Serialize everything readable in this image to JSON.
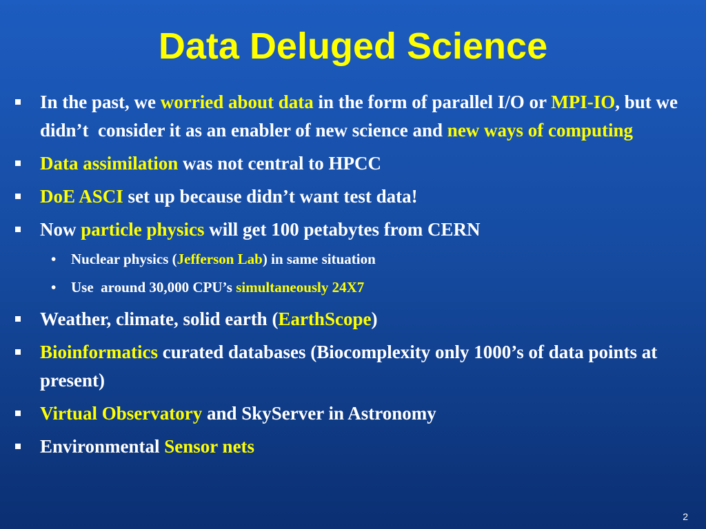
{
  "title": "Data Deluged Science",
  "bullets": [
    {
      "runs": [
        {
          "text": "In the past, we ",
          "highlight": false
        },
        {
          "text": "worried about data",
          "highlight": true
        },
        {
          "text": " in the form of parallel I/O or ",
          "highlight": false
        },
        {
          "text": "MPI-IO",
          "highlight": true
        },
        {
          "text": ", but we didn’t  consider it as an enabler of new science and ",
          "highlight": false
        },
        {
          "text": "new ways of computing",
          "highlight": true
        }
      ]
    },
    {
      "runs": [
        {
          "text": "Data assimilation",
          "highlight": true
        },
        {
          "text": " was not central to HPCC",
          "highlight": false
        }
      ]
    },
    {
      "runs": [
        {
          "text": "DoE ASCI",
          "highlight": true
        },
        {
          "text": " set up because didn’t want test data!",
          "highlight": false
        }
      ]
    },
    {
      "runs": [
        {
          "text": "Now ",
          "highlight": false
        },
        {
          "text": "particle physics",
          "highlight": true
        },
        {
          "text": " will get 100 petabytes from CERN",
          "highlight": false
        }
      ],
      "sub_bullets": [
        {
          "runs": [
            {
              "text": "Nuclear physics (",
              "highlight": false
            },
            {
              "text": "Jefferson Lab",
              "highlight": true
            },
            {
              "text": ") in same situation",
              "highlight": false
            }
          ]
        },
        {
          "runs": [
            {
              "text": "Use  around 30,000 CPU’s ",
              "highlight": false
            },
            {
              "text": "simultaneously 24X7",
              "highlight": true
            }
          ]
        }
      ]
    },
    {
      "runs": [
        {
          "text": "Weather, climate, solid earth (",
          "highlight": false
        },
        {
          "text": "EarthScope",
          "highlight": true
        },
        {
          "text": ")",
          "highlight": false
        }
      ]
    },
    {
      "runs": [
        {
          "text": "Bioinformatics",
          "highlight": true
        },
        {
          "text": " curated databases (Biocomplexity only 1000’s of data points at present)",
          "highlight": false
        }
      ]
    },
    {
      "runs": [
        {
          "text": "Virtual Observatory",
          "highlight": true
        },
        {
          "text": " and SkyServer in Astronomy",
          "highlight": false
        }
      ]
    },
    {
      "runs": [
        {
          "text": "Environmental ",
          "highlight": false
        },
        {
          "text": "Sensor nets",
          "highlight": true
        }
      ]
    }
  ],
  "page_number": "2"
}
